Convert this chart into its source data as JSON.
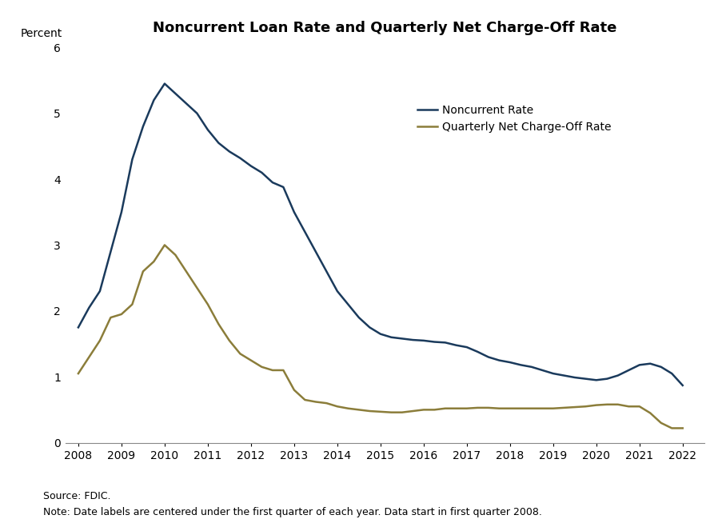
{
  "title": "Noncurrent Loan Rate and Quarterly Net Charge-Off Rate",
  "percent_label": "Percent",
  "source_text": "Source: FDIC.",
  "note_text": "Note: Date labels are centered under the first quarter of each year. Data start in first quarter 2008.",
  "ylim": [
    0,
    6
  ],
  "yticks": [
    0,
    1,
    2,
    3,
    4,
    5,
    6
  ],
  "x_labels": [
    "2008",
    "2009",
    "2010",
    "2011",
    "2012",
    "2013",
    "2014",
    "2015",
    "2016",
    "2017",
    "2018",
    "2019",
    "2020",
    "2021",
    "2022"
  ],
  "noncurrent_color": "#1a3a5c",
  "chargeoff_color": "#8B7D3A",
  "legend_labels": [
    "Noncurrent Rate",
    "Quarterly Net Charge-Off Rate"
  ],
  "noncurrent_x": [
    2008.0,
    2008.25,
    2008.5,
    2008.75,
    2009.0,
    2009.25,
    2009.5,
    2009.75,
    2010.0,
    2010.25,
    2010.5,
    2010.75,
    2011.0,
    2011.25,
    2011.5,
    2011.75,
    2012.0,
    2012.25,
    2012.5,
    2012.75,
    2013.0,
    2013.25,
    2013.5,
    2013.75,
    2014.0,
    2014.25,
    2014.5,
    2014.75,
    2015.0,
    2015.25,
    2015.5,
    2015.75,
    2016.0,
    2016.25,
    2016.5,
    2016.75,
    2017.0,
    2017.25,
    2017.5,
    2017.75,
    2018.0,
    2018.25,
    2018.5,
    2018.75,
    2019.0,
    2019.25,
    2019.5,
    2019.75,
    2020.0,
    2020.25,
    2020.5,
    2020.75,
    2021.0,
    2021.25,
    2021.5,
    2021.75,
    2022.0
  ],
  "noncurrent_y": [
    1.75,
    2.05,
    2.3,
    2.9,
    3.5,
    4.3,
    4.8,
    5.2,
    5.45,
    5.3,
    5.15,
    5.0,
    4.75,
    4.55,
    4.42,
    4.32,
    4.2,
    4.1,
    3.95,
    3.88,
    3.5,
    3.2,
    2.9,
    2.6,
    2.3,
    2.1,
    1.9,
    1.75,
    1.65,
    1.6,
    1.58,
    1.56,
    1.55,
    1.53,
    1.52,
    1.48,
    1.45,
    1.38,
    1.3,
    1.25,
    1.22,
    1.18,
    1.15,
    1.1,
    1.05,
    1.02,
    0.99,
    0.97,
    0.95,
    0.97,
    1.02,
    1.1,
    1.18,
    1.2,
    1.15,
    1.05,
    0.87
  ],
  "chargeoff_x": [
    2008.0,
    2008.25,
    2008.5,
    2008.75,
    2009.0,
    2009.25,
    2009.5,
    2009.75,
    2010.0,
    2010.25,
    2010.5,
    2010.75,
    2011.0,
    2011.25,
    2011.5,
    2011.75,
    2012.0,
    2012.25,
    2012.5,
    2012.75,
    2013.0,
    2013.25,
    2013.5,
    2013.75,
    2014.0,
    2014.25,
    2014.5,
    2014.75,
    2015.0,
    2015.25,
    2015.5,
    2015.75,
    2016.0,
    2016.25,
    2016.5,
    2016.75,
    2017.0,
    2017.25,
    2017.5,
    2017.75,
    2018.0,
    2018.25,
    2018.5,
    2018.75,
    2019.0,
    2019.25,
    2019.5,
    2019.75,
    2020.0,
    2020.25,
    2020.5,
    2020.75,
    2021.0,
    2021.25,
    2021.5,
    2021.75,
    2022.0
  ],
  "chargeoff_y": [
    1.05,
    1.3,
    1.55,
    1.9,
    1.95,
    2.1,
    2.6,
    2.75,
    3.0,
    2.85,
    2.6,
    2.35,
    2.1,
    1.8,
    1.55,
    1.35,
    1.25,
    1.15,
    1.1,
    1.1,
    0.8,
    0.65,
    0.62,
    0.6,
    0.55,
    0.52,
    0.5,
    0.48,
    0.47,
    0.46,
    0.46,
    0.48,
    0.5,
    0.5,
    0.52,
    0.52,
    0.52,
    0.53,
    0.53,
    0.52,
    0.52,
    0.52,
    0.52,
    0.52,
    0.52,
    0.53,
    0.54,
    0.55,
    0.57,
    0.58,
    0.58,
    0.55,
    0.55,
    0.45,
    0.3,
    0.22,
    0.22
  ],
  "background_color": "#ffffff",
  "line_width": 1.8
}
